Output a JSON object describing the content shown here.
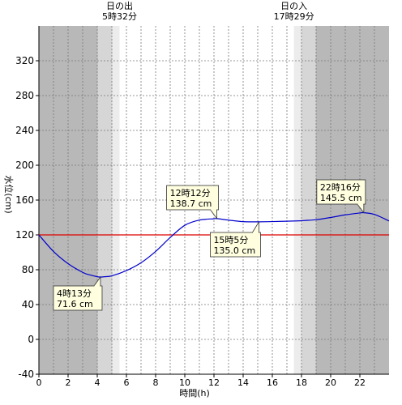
{
  "chart_data": {
    "type": "line",
    "xlabel": "時間(h)",
    "ylabel": "水位(cm)",
    "xlim": [
      0,
      24
    ],
    "ylim": [
      -40,
      360
    ],
    "xticks": [
      0,
      2,
      4,
      6,
      8,
      10,
      12,
      14,
      16,
      18,
      20,
      22
    ],
    "yticks": [
      -40,
      0,
      40,
      80,
      120,
      160,
      200,
      240,
      280,
      320
    ],
    "grid": true,
    "reference_level": 120,
    "sunrise": {
      "label": "日の出",
      "time": "5時32分",
      "hour": 5.53
    },
    "sunset": {
      "label": "日の入",
      "time": "17時29分",
      "hour": 17.48
    },
    "series": [
      {
        "color": "#0000cc",
        "x": [
          0,
          1,
          2,
          3,
          3.5,
          4,
          4.22,
          4.5,
          5,
          6,
          7,
          8,
          9,
          10,
          11,
          12,
          12.2,
          13,
          14,
          15,
          15.08,
          16,
          17,
          18,
          19,
          20,
          21,
          22,
          22.27,
          23,
          24
        ],
        "y": [
          120,
          101,
          87,
          77,
          74,
          72,
          71.6,
          72,
          73,
          79,
          88,
          101,
          117,
          131,
          137,
          138.5,
          138.7,
          137,
          135.2,
          135,
          135,
          135.3,
          135.7,
          136.3,
          137.5,
          140,
          143,
          145.2,
          145.5,
          143.5,
          136
        ]
      }
    ],
    "annotations": [
      {
        "time": "4時13分",
        "value": "71.6 cm",
        "x": 4.22,
        "y": 71.6
      },
      {
        "time": "12時12分",
        "value": "138.7 cm",
        "x": 12.2,
        "y": 138.7
      },
      {
        "time": "15時5分",
        "value": "135.0 cm",
        "x": 15.08,
        "y": 135.0
      },
      {
        "time": "22時16分",
        "value": "145.5 cm",
        "x": 22.27,
        "y": 145.5
      }
    ],
    "colors": {
      "night": "#b8b8b8",
      "twilight_dark": "#d6d6d6",
      "twilight_light": "#ececec",
      "day": "#ffffff",
      "reference_line": "#dd0000",
      "annotation_fill": "#ffffe0"
    }
  }
}
